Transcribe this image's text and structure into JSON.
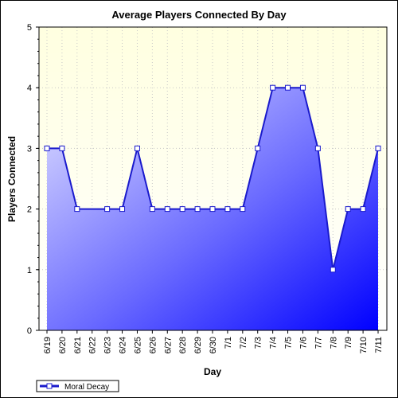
{
  "chart_data": {
    "type": "area",
    "title": "Average Players Connected By Day",
    "xlabel": "Day",
    "ylabel": "Players Connected",
    "ylim": [
      0,
      5
    ],
    "yticks": [
      0,
      1,
      2,
      3,
      4,
      5
    ],
    "grid": true,
    "legend_position": "bottom-left",
    "categories": [
      "6/19",
      "6/20",
      "6/21",
      "6/22",
      "6/23",
      "6/24",
      "6/25",
      "6/26",
      "6/27",
      "6/28",
      "6/29",
      "6/30",
      "7/1",
      "7/2",
      "7/3",
      "7/4",
      "7/5",
      "7/6",
      "7/7",
      "7/8",
      "7/9",
      "7/10",
      "7/11"
    ],
    "series": [
      {
        "name": "Moral Decay",
        "x": [
          "6/19",
          "6/20",
          "6/21",
          "6/23",
          "6/24",
          "6/25",
          "6/26",
          "6/27",
          "6/28",
          "6/29",
          "6/30",
          "7/1",
          "7/2",
          "7/3",
          "7/4",
          "7/5",
          "7/6",
          "7/7",
          "7/8",
          "7/9",
          "7/10",
          "7/11"
        ],
        "values": [
          3,
          3,
          2,
          2,
          2,
          3,
          2,
          2,
          2,
          2,
          2,
          2,
          2,
          3,
          4,
          4,
          4,
          3,
          1,
          2,
          2,
          3
        ]
      }
    ],
    "colors": {
      "line": "#1a1acc",
      "fill_top": "#ffffff",
      "fill_bottom": "#0000ff",
      "plot_background": "#ffffe0",
      "marker_fill": "#ffffff"
    }
  }
}
